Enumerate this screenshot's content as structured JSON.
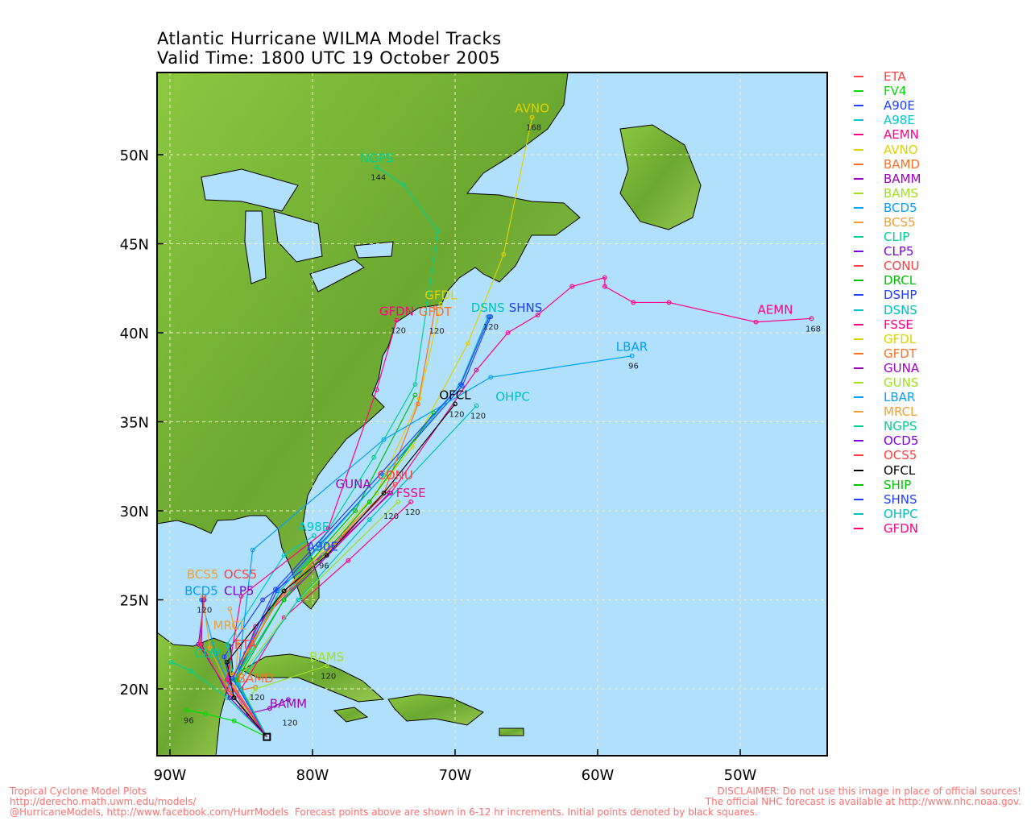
{
  "title": {
    "line1": "Atlantic Hurricane WILMA Model Tracks",
    "line2": "Valid Time: 1800 UTC 19 October 2005"
  },
  "colors": {
    "sea": "#b0e0fb",
    "land": "#78b838",
    "grid": "#f0f0c0"
  },
  "axes": {
    "lon_ticks": [
      "90W",
      "80W",
      "70W",
      "60W",
      "50W"
    ],
    "lon_values": [
      -90,
      -80,
      -70,
      -60,
      -50
    ],
    "lat_ticks": [
      "20N",
      "25N",
      "30N",
      "35N",
      "40N",
      "45N",
      "50N"
    ],
    "lat_values": [
      20,
      25,
      30,
      35,
      40,
      45,
      50
    ],
    "lon_range": [
      -90.9,
      -44.5
    ],
    "lat_range": [
      16.25,
      54.6
    ]
  },
  "initial_point": [
    -83.2,
    17.3
  ],
  "tracks": [
    {
      "name": "ETA",
      "color": "#ff4040",
      "label": true,
      "hour": "",
      "pts": [
        [
          -83.2,
          17.3
        ],
        [
          -84.5,
          18.5
        ],
        [
          -85.8,
          20.3
        ],
        [
          -84.7,
          22.0
        ]
      ]
    },
    {
      "name": "FV4",
      "color": "#00dd00",
      "label": false,
      "hour": "96",
      "pts": [
        [
          -83.2,
          17.3
        ],
        [
          -85.5,
          18.2
        ],
        [
          -87.5,
          18.6
        ],
        [
          -88.8,
          18.8
        ]
      ]
    },
    {
      "name": "A90E",
      "color": "#2040ff",
      "label": true,
      "hour": "96",
      "pts": [
        [
          -83.2,
          17.3
        ],
        [
          -85.5,
          19.5
        ],
        [
          -86.2,
          21.8
        ],
        [
          -83.5,
          25
        ],
        [
          -79.3,
          27.5
        ]
      ]
    },
    {
      "name": "A98E",
      "color": "#00c8c8",
      "label": true,
      "hour": "",
      "pts": [
        [
          -83.2,
          17.3
        ],
        [
          -85.3,
          19.8
        ],
        [
          -86,
          22.5
        ],
        [
          -82,
          27.5
        ],
        [
          -79.9,
          28.6
        ]
      ]
    },
    {
      "name": "AEMN",
      "color": "#ff0088",
      "label": true,
      "hour": "168",
      "pts": [
        [
          -83.2,
          17.3
        ],
        [
          -85.5,
          20
        ],
        [
          -84,
          23.5
        ],
        [
          -79.5,
          27.2
        ],
        [
          -74.5,
          31
        ],
        [
          -68.5,
          37.9
        ],
        [
          -66.3,
          40
        ],
        [
          -64.2,
          41
        ],
        [
          -61.8,
          42.6
        ],
        [
          -59.5,
          43.1
        ],
        [
          -59.5,
          42.6
        ],
        [
          -57.5,
          41.7
        ],
        [
          -55,
          41.7
        ],
        [
          -48.9,
          40.6
        ],
        [
          -45,
          40.8
        ]
      ]
    },
    {
      "name": "AVNO",
      "color": "#e0d000",
      "label": true,
      "hour": "168",
      "pts": [
        [
          -83.2,
          17.3
        ],
        [
          -85.5,
          20
        ],
        [
          -83,
          24.5
        ],
        [
          -78.5,
          28
        ],
        [
          -73,
          33.6
        ],
        [
          -69.1,
          39.4
        ],
        [
          -66.6,
          44.4
        ],
        [
          -64.6,
          52.1
        ]
      ]
    },
    {
      "name": "BAMD",
      "color": "#ff7020",
      "label": true,
      "hour": "120",
      "pts": [
        [
          -83.2,
          17.3
        ],
        [
          -85,
          19
        ],
        [
          -85.8,
          19.8
        ],
        [
          -84,
          20.1
        ]
      ]
    },
    {
      "name": "BAMM",
      "color": "#a000c0",
      "label": true,
      "hour": "120",
      "pts": [
        [
          -83.2,
          17.3
        ],
        [
          -84.5,
          18.6
        ],
        [
          -83,
          18.9
        ],
        [
          -81.7,
          19.4
        ]
      ]
    },
    {
      "name": "BAMS",
      "color": "#a0e020",
      "label": true,
      "hour": "120",
      "pts": [
        [
          -83.2,
          17.3
        ],
        [
          -84.8,
          19
        ],
        [
          -84,
          20
        ],
        [
          -79,
          21.3
        ]
      ]
    },
    {
      "name": "BCD5",
      "color": "#00a0ff",
      "label": true,
      "hour": "",
      "pts": [
        [
          -83.2,
          17.3
        ],
        [
          -85.5,
          19.5
        ],
        [
          -86.8,
          22
        ],
        [
          -87.8,
          25
        ]
      ]
    },
    {
      "name": "BCS5",
      "color": "#f0a030",
      "label": true,
      "hour": "",
      "pts": [
        [
          -83.2,
          17.3
        ],
        [
          -85.6,
          19.6
        ],
        [
          -87.2,
          22.3
        ],
        [
          -87.7,
          25.2
        ]
      ]
    },
    {
      "name": "CLIP",
      "color": "#00d090",
      "label": true,
      "hour": "",
      "pts": [
        [
          -83.2,
          17.3
        ],
        [
          -86,
          19.5
        ],
        [
          -88.5,
          21
        ],
        [
          -89.9,
          21.5
        ]
      ]
    },
    {
      "name": "CLP5",
      "color": "#8000e0",
      "label": true,
      "hour": "120",
      "pts": [
        [
          -83.2,
          17.3
        ],
        [
          -85.8,
          19.5
        ],
        [
          -87.8,
          22.5
        ],
        [
          -87.7,
          25.0
        ]
      ]
    },
    {
      "name": "CONU",
      "color": "#ff4040",
      "label": true,
      "hour": "",
      "pts": [
        [
          -83.2,
          17.3
        ],
        [
          -85.8,
          20.5
        ],
        [
          -83,
          24.5
        ],
        [
          -78,
          28.5
        ],
        [
          -74.2,
          31.5
        ]
      ]
    },
    {
      "name": "DRCL",
      "color": "#00c000",
      "label": false,
      "hour": "",
      "pts": [
        [
          -83.2,
          17.3
        ],
        [
          -85.5,
          20.5
        ],
        [
          -82.5,
          25
        ],
        [
          -77,
          30
        ],
        [
          -72.8,
          36.5
        ]
      ]
    },
    {
      "name": "DSHP",
      "color": "#2040ff",
      "label": false,
      "hour": "",
      "pts": [
        [
          -83.2,
          17.3
        ],
        [
          -85.5,
          20.5
        ],
        [
          -82.5,
          25.5
        ],
        [
          -75,
          32
        ],
        [
          -69.5,
          37
        ],
        [
          -67.5,
          40.9
        ]
      ]
    },
    {
      "name": "DSNS",
      "color": "#00c0c0",
      "label": true,
      "hour": "",
      "pts": [
        [
          -83.2,
          17.3
        ],
        [
          -85.4,
          20.5
        ],
        [
          -82.3,
          25.5
        ],
        [
          -75,
          32
        ],
        [
          -69.7,
          37
        ],
        [
          -67.7,
          40.9
        ]
      ]
    },
    {
      "name": "FSSE",
      "color": "#ff0088",
      "label": true,
      "hour": "120",
      "pts": [
        [
          -83.2,
          17.3
        ],
        [
          -85,
          20
        ],
        [
          -82,
          24
        ],
        [
          -77.5,
          27.2
        ],
        [
          -73.1,
          30.5
        ]
      ]
    },
    {
      "name": "GFDL",
      "color": "#e0d000",
      "label": true,
      "hour": "",
      "pts": [
        [
          -83.2,
          17.3
        ],
        [
          -85.6,
          20.8
        ],
        [
          -82,
          25.5
        ],
        [
          -75.5,
          31
        ],
        [
          -72.5,
          36.3
        ],
        [
          -71,
          41.6
        ]
      ]
    },
    {
      "name": "GFDT",
      "color": "#ff7020",
      "label": true,
      "hour": "120",
      "pts": [
        [
          -83.2,
          17.3
        ],
        [
          -85.5,
          20.8
        ],
        [
          -82,
          25.5
        ],
        [
          -75,
          31
        ],
        [
          -72.6,
          36
        ],
        [
          -71.4,
          41.4
        ]
      ]
    },
    {
      "name": "GUNA",
      "color": "#a000c0",
      "label": true,
      "hour": "120",
      "pts": [
        [
          -83.2,
          17.3
        ],
        [
          -85.5,
          20.5
        ],
        [
          -82,
          25
        ],
        [
          -74.6,
          31
        ]
      ]
    },
    {
      "name": "GUNS",
      "color": "#a0e020",
      "label": false,
      "hour": "",
      "pts": [
        [
          -83.2,
          17.3
        ],
        [
          -85.3,
          20.5
        ],
        [
          -81,
          25
        ],
        [
          -74,
          30.5
        ]
      ]
    },
    {
      "name": "LBAR",
      "color": "#00a0ff",
      "label": true,
      "hour": "96",
      "pts": [
        [
          -83.2,
          17.3
        ],
        [
          -85.3,
          20.3
        ],
        [
          -84.2,
          27.8
        ],
        [
          -75,
          34
        ],
        [
          -67.5,
          37.5
        ],
        [
          -57.6,
          38.7
        ]
      ]
    },
    {
      "name": "MRCL",
      "color": "#f0a030",
      "label": true,
      "hour": "",
      "pts": [
        [
          -83.2,
          17.3
        ],
        [
          -85.5,
          20
        ],
        [
          -85.2,
          22.5
        ],
        [
          -85.8,
          24.5
        ]
      ]
    },
    {
      "name": "NGPS",
      "color": "#00d090",
      "label": true,
      "hour": "144",
      "pts": [
        [
          -83.2,
          17.3
        ],
        [
          -85.5,
          20.5
        ],
        [
          -82,
          25
        ],
        [
          -75.7,
          33
        ],
        [
          -72.8,
          37.1
        ],
        [
          -71.2,
          45.7
        ],
        [
          -73.6,
          48.3
        ],
        [
          -75.5,
          49.3
        ]
      ]
    },
    {
      "name": "OCD5",
      "color": "#8000e0",
      "label": false,
      "hour": "",
      "pts": [
        [
          -83.2,
          17.3
        ],
        [
          -86,
          20
        ],
        [
          -88,
          22.5
        ],
        [
          -87.6,
          25
        ]
      ]
    },
    {
      "name": "OCS5",
      "color": "#ff4040",
      "label": true,
      "hour": "",
      "pts": [
        [
          -83.2,
          17.3
        ],
        [
          -86,
          20
        ],
        [
          -87.9,
          22.5
        ],
        [
          -87.6,
          25.2
        ]
      ]
    },
    {
      "name": "OFCL",
      "color": "#000000",
      "label": true,
      "hour": "120",
      "pts": [
        [
          -83.2,
          17.3
        ],
        [
          -85.5,
          19.5
        ],
        [
          -86,
          21.5
        ],
        [
          -82,
          25.5
        ],
        [
          -79,
          27.5
        ],
        [
          -75,
          31
        ],
        [
          -70,
          36
        ]
      ]
    },
    {
      "name": "SHIP",
      "color": "#00c000",
      "label": false,
      "hour": "",
      "pts": [
        [
          -83.2,
          17.3
        ],
        [
          -85.3,
          20.5
        ],
        [
          -82,
          25
        ],
        [
          -76,
          30.5
        ],
        [
          -71.5,
          35.5
        ]
      ]
    },
    {
      "name": "SHNS",
      "color": "#2040ff",
      "label": true,
      "hour": "120",
      "pts": [
        [
          -83.2,
          17.3
        ],
        [
          -85.6,
          20.6
        ],
        [
          -82.6,
          25.6
        ],
        [
          -75.2,
          32.1
        ],
        [
          -69.6,
          37.1
        ],
        [
          -67.6,
          40.9
        ]
      ]
    },
    {
      "name": "OHPC",
      "color": "#00c0c0",
      "label": true,
      "hour": "120",
      "pts": [
        [
          -83.2,
          17.3
        ],
        [
          -85.2,
          20.3
        ],
        [
          -81,
          25
        ],
        [
          -76,
          29.5
        ],
        [
          -68.5,
          35.9
        ]
      ]
    },
    {
      "name": "GFDN",
      "color": "#ff0088",
      "label": true,
      "hour": "120",
      "pts": [
        [
          -83.2,
          17.3
        ],
        [
          -86,
          20.5
        ],
        [
          -85,
          25.2
        ],
        [
          -78.9,
          29
        ],
        [
          -75.5,
          36.8
        ],
        [
          -74.1,
          40.7
        ]
      ]
    }
  ],
  "footer": {
    "left1": "Tropical Cyclone Model Plots",
    "left2": "http://derecho.math.uwm.edu/models/",
    "left3": "@HurricaneModels, http://www.facebook.com/HurrModels  Forecast points above are shown in 6-12 hr increments. Initial points denoted by black squares.",
    "right1": "DISCLAIMER: Do not use this image in place of official sources!",
    "right2": "The official NHC forecast is available at http://www.nhc.noaa.gov."
  }
}
